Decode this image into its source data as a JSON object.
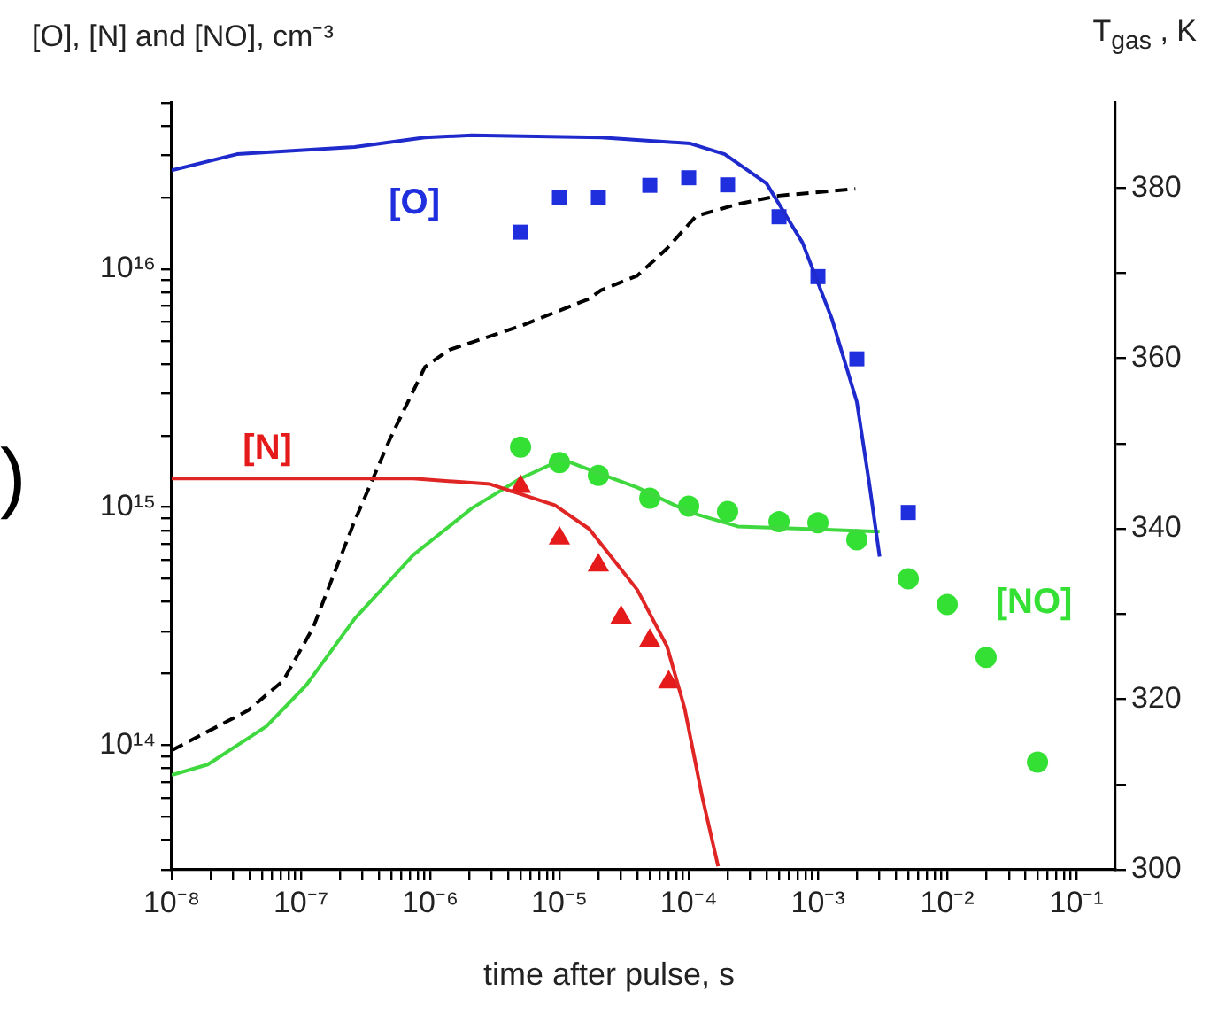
{
  "chart_data": {
    "type": "line",
    "xlabel": "time after pulse, s",
    "ylabel": "[O], [N] and [NO], cm⁻³",
    "y2label": "T$_{gas}$ , K",
    "annotations": [
      ")"
    ],
    "log": "xy",
    "grid": false,
    "legend": false,
    "xlim": [
      1e-08,
      0.2
    ],
    "xticks": [
      {
        "value": 1e-08,
        "label": "10⁻⁸"
      },
      {
        "value": 2e-08,
        "label": null
      },
      {
        "value": 3e-08,
        "label": null
      },
      {
        "value": 4e-08,
        "label": null
      },
      {
        "value": 5e-08,
        "label": null
      },
      {
        "value": 6e-08,
        "label": null
      },
      {
        "value": 7e-08,
        "label": null
      },
      {
        "value": 8e-08,
        "label": null
      },
      {
        "value": 9e-08,
        "label": null
      },
      {
        "value": 1e-07,
        "label": "10⁻⁷"
      },
      {
        "value": 2e-07,
        "label": null
      },
      {
        "value": 3e-07,
        "label": null
      },
      {
        "value": 4e-07,
        "label": null
      },
      {
        "value": 5e-07,
        "label": null
      },
      {
        "value": 6e-07,
        "label": null
      },
      {
        "value": 7e-07,
        "label": null
      },
      {
        "value": 8e-07,
        "label": null
      },
      {
        "value": 9e-07,
        "label": null
      },
      {
        "value": 1e-06,
        "label": "10⁻⁶"
      },
      {
        "value": 2e-06,
        "label": null
      },
      {
        "value": 3e-06,
        "label": null
      },
      {
        "value": 4e-06,
        "label": null
      },
      {
        "value": 5e-06,
        "label": null
      },
      {
        "value": 6e-06,
        "label": null
      },
      {
        "value": 7e-06,
        "label": null
      },
      {
        "value": 8e-06,
        "label": null
      },
      {
        "value": 9e-06,
        "label": null
      },
      {
        "value": 1e-05,
        "label": "10⁻⁵"
      },
      {
        "value": 2e-05,
        "label": null
      },
      {
        "value": 3e-05,
        "label": null
      },
      {
        "value": 4e-05,
        "label": null
      },
      {
        "value": 5e-05,
        "label": null
      },
      {
        "value": 6e-05,
        "label": null
      },
      {
        "value": 7e-05,
        "label": null
      },
      {
        "value": 8e-05,
        "label": null
      },
      {
        "value": 9e-05,
        "label": null
      },
      {
        "value": 0.0001,
        "label": "10⁻⁴"
      },
      {
        "value": 0.0002,
        "label": null
      },
      {
        "value": 0.0003,
        "label": null
      },
      {
        "value": 0.0004,
        "label": null
      },
      {
        "value": 0.0005,
        "label": null
      },
      {
        "value": 0.0006,
        "label": null
      },
      {
        "value": 0.0007,
        "label": null
      },
      {
        "value": 0.0008,
        "label": null
      },
      {
        "value": 0.0009,
        "label": null
      },
      {
        "value": 0.001,
        "label": "10⁻³"
      },
      {
        "value": 0.002,
        "label": null
      },
      {
        "value": 0.003,
        "label": null
      },
      {
        "value": 0.004,
        "label": null
      },
      {
        "value": 0.005,
        "label": null
      },
      {
        "value": 0.006,
        "label": null
      },
      {
        "value": 0.007,
        "label": null
      },
      {
        "value": 0.008,
        "label": null
      },
      {
        "value": 0.009,
        "label": null
      },
      {
        "value": 0.01,
        "label": "10⁻²"
      },
      {
        "value": 0.02,
        "label": null
      },
      {
        "value": 0.03,
        "label": null
      },
      {
        "value": 0.04,
        "label": null
      },
      {
        "value": 0.05,
        "label": null
      },
      {
        "value": 0.06,
        "label": null
      },
      {
        "value": 0.07,
        "label": null
      },
      {
        "value": 0.08,
        "label": null
      },
      {
        "value": 0.09,
        "label": null
      },
      {
        "value": 0.1,
        "label": "10⁻¹"
      }
    ],
    "ylim": [
      30000000000000.0,
      5e+16
    ],
    "yticks": [
      {
        "value": 30000000000000.0,
        "label": null
      },
      {
        "value": 40000000000000.0,
        "label": null
      },
      {
        "value": 50000000000000.0,
        "label": null
      },
      {
        "value": 60000000000000.0,
        "label": null
      },
      {
        "value": 70000000000000.0,
        "label": null
      },
      {
        "value": 80000000000000.0,
        "label": null
      },
      {
        "value": 90000000000000.0,
        "label": null
      },
      {
        "value": 100000000000000.0,
        "label": "10¹⁴"
      },
      {
        "value": 200000000000000.0,
        "label": null
      },
      {
        "value": 300000000000000.0,
        "label": null
      },
      {
        "value": 400000000000000.0,
        "label": null
      },
      {
        "value": 500000000000000.0,
        "label": null
      },
      {
        "value": 600000000000000.0,
        "label": null
      },
      {
        "value": 700000000000000.0,
        "label": null
      },
      {
        "value": 800000000000000.0,
        "label": null
      },
      {
        "value": 900000000000000.0,
        "label": null
      },
      {
        "value": 1000000000000000.0,
        "label": "10¹⁵"
      },
      {
        "value": 2000000000000000.0,
        "label": null
      },
      {
        "value": 3000000000000000.0,
        "label": null
      },
      {
        "value": 4000000000000000.0,
        "label": null
      },
      {
        "value": 5000000000000000.0,
        "label": null
      },
      {
        "value": 6000000000000000.0,
        "label": null
      },
      {
        "value": 7000000000000000.0,
        "label": null
      },
      {
        "value": 8000000000000000.0,
        "label": null
      },
      {
        "value": 9000000000000000.0,
        "label": null
      },
      {
        "value": 1e+16,
        "label": "10¹⁶"
      },
      {
        "value": 2e+16,
        "label": null
      },
      {
        "value": 3e+16,
        "label": null
      },
      {
        "value": 4e+16,
        "label": null
      },
      {
        "value": 5e+16,
        "label": null
      }
    ],
    "y2lim": [
      300,
      390
    ],
    "y2ticks": [
      300,
      {
        "value": 310,
        "label": null
      },
      320,
      {
        "value": 330,
        "label": null
      },
      340,
      {
        "value": 350,
        "label": null
      },
      360,
      {
        "value": 370,
        "label": null
      },
      380
    ],
    "series": [
      {
        "type": "line",
        "color": "#1f2acc",
        "marker": "none",
        "line_style": "solid",
        "x": [
          1e-08,
          3.2e-08,
          2.6e-07,
          9.1e-07,
          2.1e-06,
          2.1e-05,
          0.000103,
          0.00019,
          0.0004,
          0.00076,
          0.00128,
          0.002,
          0.0025,
          0.003
        ],
        "values": [
          2.6e+16,
          3.04e+16,
          3.26e+16,
          3.57e+16,
          3.65e+16,
          3.57e+16,
          3.37e+16,
          3.04e+16,
          2.29e+16,
          1.29e+16,
          6200000000000000.0,
          2770000000000000.0,
          1250000000000000.0,
          620000000000000.0
        ]
      },
      {
        "type": "scatter",
        "name": "[O]",
        "color": "#1f2fdd",
        "marker": "square",
        "x": [
          5e-06,
          1e-05,
          2e-05,
          5e-05,
          0.0001,
          0.0002,
          0.0005,
          0.001,
          0.002,
          0.005
        ],
        "values": [
          1.43e+16,
          2e+16,
          2e+16,
          2.25e+16,
          2.42e+16,
          2.26e+16,
          1.66e+16,
          9300000000000000.0,
          4200000000000000.0,
          950000000000000.0
        ]
      },
      {
        "type": "line",
        "color": "#e02525",
        "marker": "none",
        "line_style": "solid",
        "x": [
          1e-08,
          7.4e-07,
          2.9e-06,
          9.2e-06,
          1.7e-05,
          2.1e-05,
          4e-05,
          6.8e-05,
          9.3e-05,
          0.000127,
          0.000169
        ],
        "values": [
          1320000000000000.0,
          1320000000000000.0,
          1250000000000000.0,
          1020000000000000.0,
          810000000000000.0,
          700000000000000.0,
          450000000000000.0,
          260000000000000.0,
          143000000000000.0,
          61000000000000.0,
          31000000000000.0
        ]
      },
      {
        "type": "scatter",
        "name": "[N]",
        "color": "#e51b1b",
        "marker": "triangle",
        "x": [
          5e-06,
          1e-05,
          2e-05,
          3e-05,
          5e-05,
          7e-05
        ],
        "values": [
          1220000000000000.0,
          740000000000000.0,
          570000000000000.0,
          345000000000000.0,
          275000000000000.0,
          184000000000000.0
        ]
      },
      {
        "type": "line",
        "color": "#3fd83f",
        "marker": "none",
        "line_style": "solid",
        "x": [
          1e-08,
          1.9e-08,
          5.4e-08,
          1.1e-07,
          2.6e-07,
          7.4e-07,
          2.1e-06,
          5e-06,
          1.05e-05,
          2.6e-05,
          4e-05,
          0.000103,
          0.00024,
          0.00084,
          0.003
        ],
        "values": [
          75000000000000.0,
          83000000000000.0,
          120000000000000.0,
          179000000000000.0,
          340000000000000.0,
          630000000000000.0,
          990000000000000.0,
          1320000000000000.0,
          1590000000000000.0,
          1320000000000000.0,
          1210000000000000.0,
          950000000000000.0,
          830000000000000.0,
          810000000000000.0,
          790000000000000.0
        ]
      },
      {
        "type": "scatter",
        "name": "[NO]",
        "color": "#33e033",
        "marker": "circle",
        "x": [
          5e-06,
          1e-05,
          2e-05,
          5e-05,
          0.0001,
          0.0002,
          0.0005,
          0.001,
          0.002,
          0.005,
          0.01,
          0.02,
          0.05
        ],
        "values": [
          1790000000000000.0,
          1540000000000000.0,
          1360000000000000.0,
          1090000000000000.0,
          1010000000000000.0,
          960000000000000.0,
          870000000000000.0,
          860000000000000.0,
          730000000000000.0,
          500000000000000.0,
          390000000000000.0,
          234000000000000.0,
          85000000000000.0
        ]
      },
      {
        "type": "line",
        "axis": "y2",
        "color": "#000000",
        "marker": "none",
        "line_style": "dashed",
        "x": [
          1e-08,
          3.9e-08,
          7.3e-08,
          1.24e-07,
          2.6e-07,
          4.9e-07,
          9.1e-07,
          1.4e-06,
          5e-06,
          1.7e-05,
          2.1e-05,
          4e-05,
          6.8e-05,
          0.000114,
          0.00024,
          0.0005,
          0.00195
        ],
        "values": [
          314.0,
          318.7,
          322.2,
          328.4,
          340.9,
          350.6,
          359.0,
          361.0,
          363.8,
          367.0,
          368.0,
          369.7,
          372.9,
          376.7,
          378.1,
          379.1,
          379.9
        ]
      }
    ]
  }
}
